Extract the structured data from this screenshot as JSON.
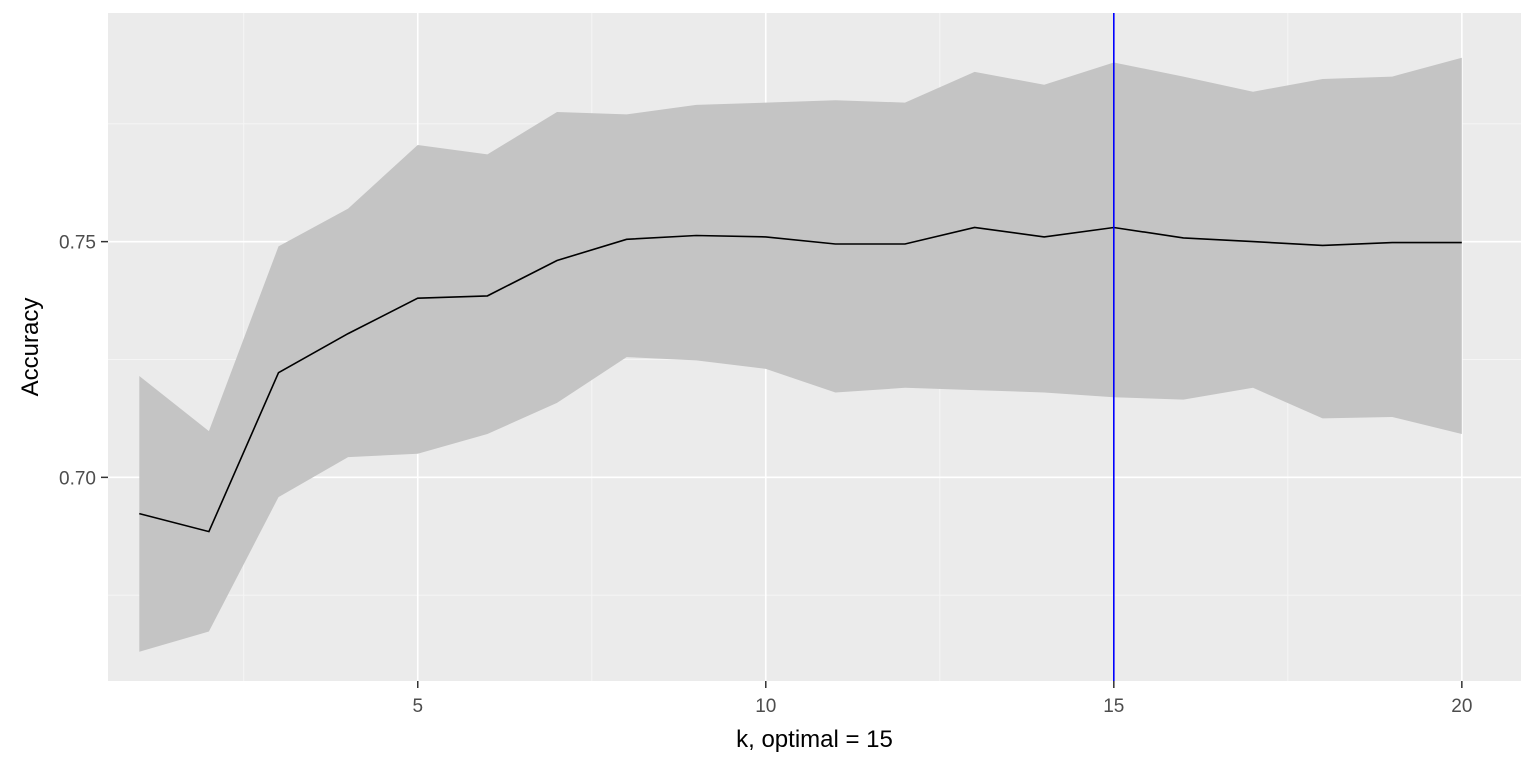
{
  "chart_data": {
    "type": "line",
    "xlabel": "k, optimal = 15",
    "ylabel": "Accuracy",
    "xlim": [
      0.55,
      20.85
    ],
    "ylim": [
      0.6568,
      0.7985
    ],
    "x_ticks": [
      5,
      10,
      15,
      20
    ],
    "x_tick_labels": [
      "5",
      "10",
      "15",
      "20"
    ],
    "y_ticks": [
      0.7,
      0.75
    ],
    "y_tick_labels": [
      "0.70",
      "0.75"
    ],
    "grid": true,
    "legend": "none",
    "series": [
      {
        "kind": "ribbon",
        "x": [
          1,
          2,
          3,
          4,
          5,
          6,
          7,
          8,
          9,
          10,
          11,
          12,
          13,
          14,
          15,
          16,
          17,
          18,
          19,
          20
        ],
        "lower": [
          0.663,
          0.6673,
          0.6958,
          0.7043,
          0.705,
          0.7092,
          0.7158,
          0.7255,
          0.7248,
          0.723,
          0.718,
          0.719,
          0.7185,
          0.718,
          0.717,
          0.7165,
          0.719,
          0.7125,
          0.7128,
          0.7092
        ],
        "upper": [
          0.7215,
          0.7098,
          0.749,
          0.757,
          0.7705,
          0.7685,
          0.7775,
          0.777,
          0.779,
          0.7795,
          0.78,
          0.7795,
          0.786,
          0.7833,
          0.788,
          0.785,
          0.7818,
          0.7845,
          0.785,
          0.789
        ],
        "color": "#c4c4c4"
      },
      {
        "kind": "line",
        "x": [
          1,
          2,
          3,
          4,
          5,
          6,
          7,
          8,
          9,
          10,
          11,
          12,
          13,
          14,
          15,
          16,
          17,
          18,
          19,
          20
        ],
        "values": [
          0.6923,
          0.6885,
          0.7222,
          0.7305,
          0.738,
          0.7385,
          0.746,
          0.7505,
          0.7513,
          0.751,
          0.7495,
          0.7495,
          0.753,
          0.751,
          0.753,
          0.7508,
          0.75,
          0.7492,
          0.7498,
          0.7498
        ],
        "color": "#000000"
      }
    ],
    "vline": {
      "x": 15,
      "color": "#0000ff"
    },
    "colors": {
      "panel": "#ebebeb",
      "grid_major": "#ffffff",
      "grid_minor": "#f5f5f5",
      "tick": "#333333"
    }
  }
}
